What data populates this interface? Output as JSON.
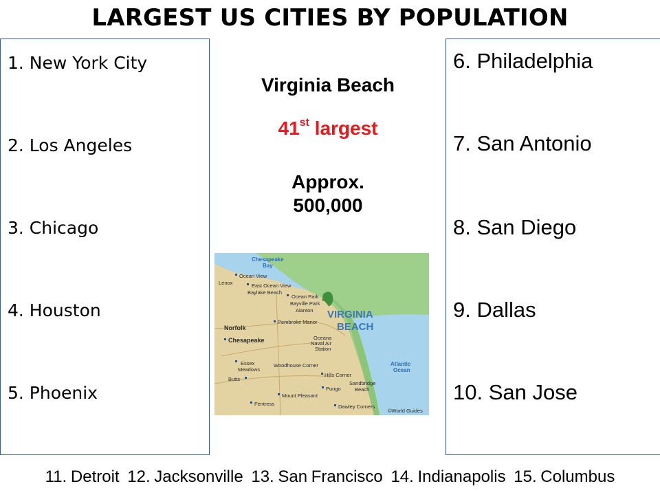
{
  "title": "LARGEST US CITIES BY POPULATION",
  "left_list": [
    "1. New York City",
    "2.  Los Angeles",
    "3.  Chicago",
    "4.  Houston",
    "5.  Phoenix"
  ],
  "right_list": [
    "6.  Philadelphia",
    "7. San Antonio",
    "8.  San Diego",
    "9.  Dallas",
    "10.  San Jose"
  ],
  "feature": {
    "city": "Virginia Beach",
    "rank_number": "41",
    "rank_suffix": "st",
    "rank_word": "largest",
    "population_line1": "Approx.",
    "population_line2": "500,000",
    "rank_color": "#e8191c"
  },
  "map": {
    "title": "VIRGINIA",
    "title2": "BEACH",
    "water_labels": [
      "Chesapeake",
      "Bay",
      "Atlantic",
      "Ocean"
    ],
    "places": [
      "Ocean View",
      "Lenox",
      "East Ocean View",
      "Baylake Beach",
      "Ocean Park",
      "Bayville Park",
      "Alanton",
      "Norfolk",
      "Pembroke Manor",
      "Chesapeake",
      "Oceana",
      "Naval Air",
      "Station",
      "Essex",
      "Meadows",
      "Woodhouse Corner",
      "Butts",
      "Hills Corner",
      "Sandbridge",
      "Beach",
      "Pungo",
      "Mount Pleasant",
      "Fentress",
      "Dawley Corners"
    ],
    "credit": "©World Guides"
  },
  "footer": [
    "11. Detroit",
    "12. Jacksonville",
    "13. San Francisco",
    "14. Indianapolis",
    "15. Columbus"
  ]
}
